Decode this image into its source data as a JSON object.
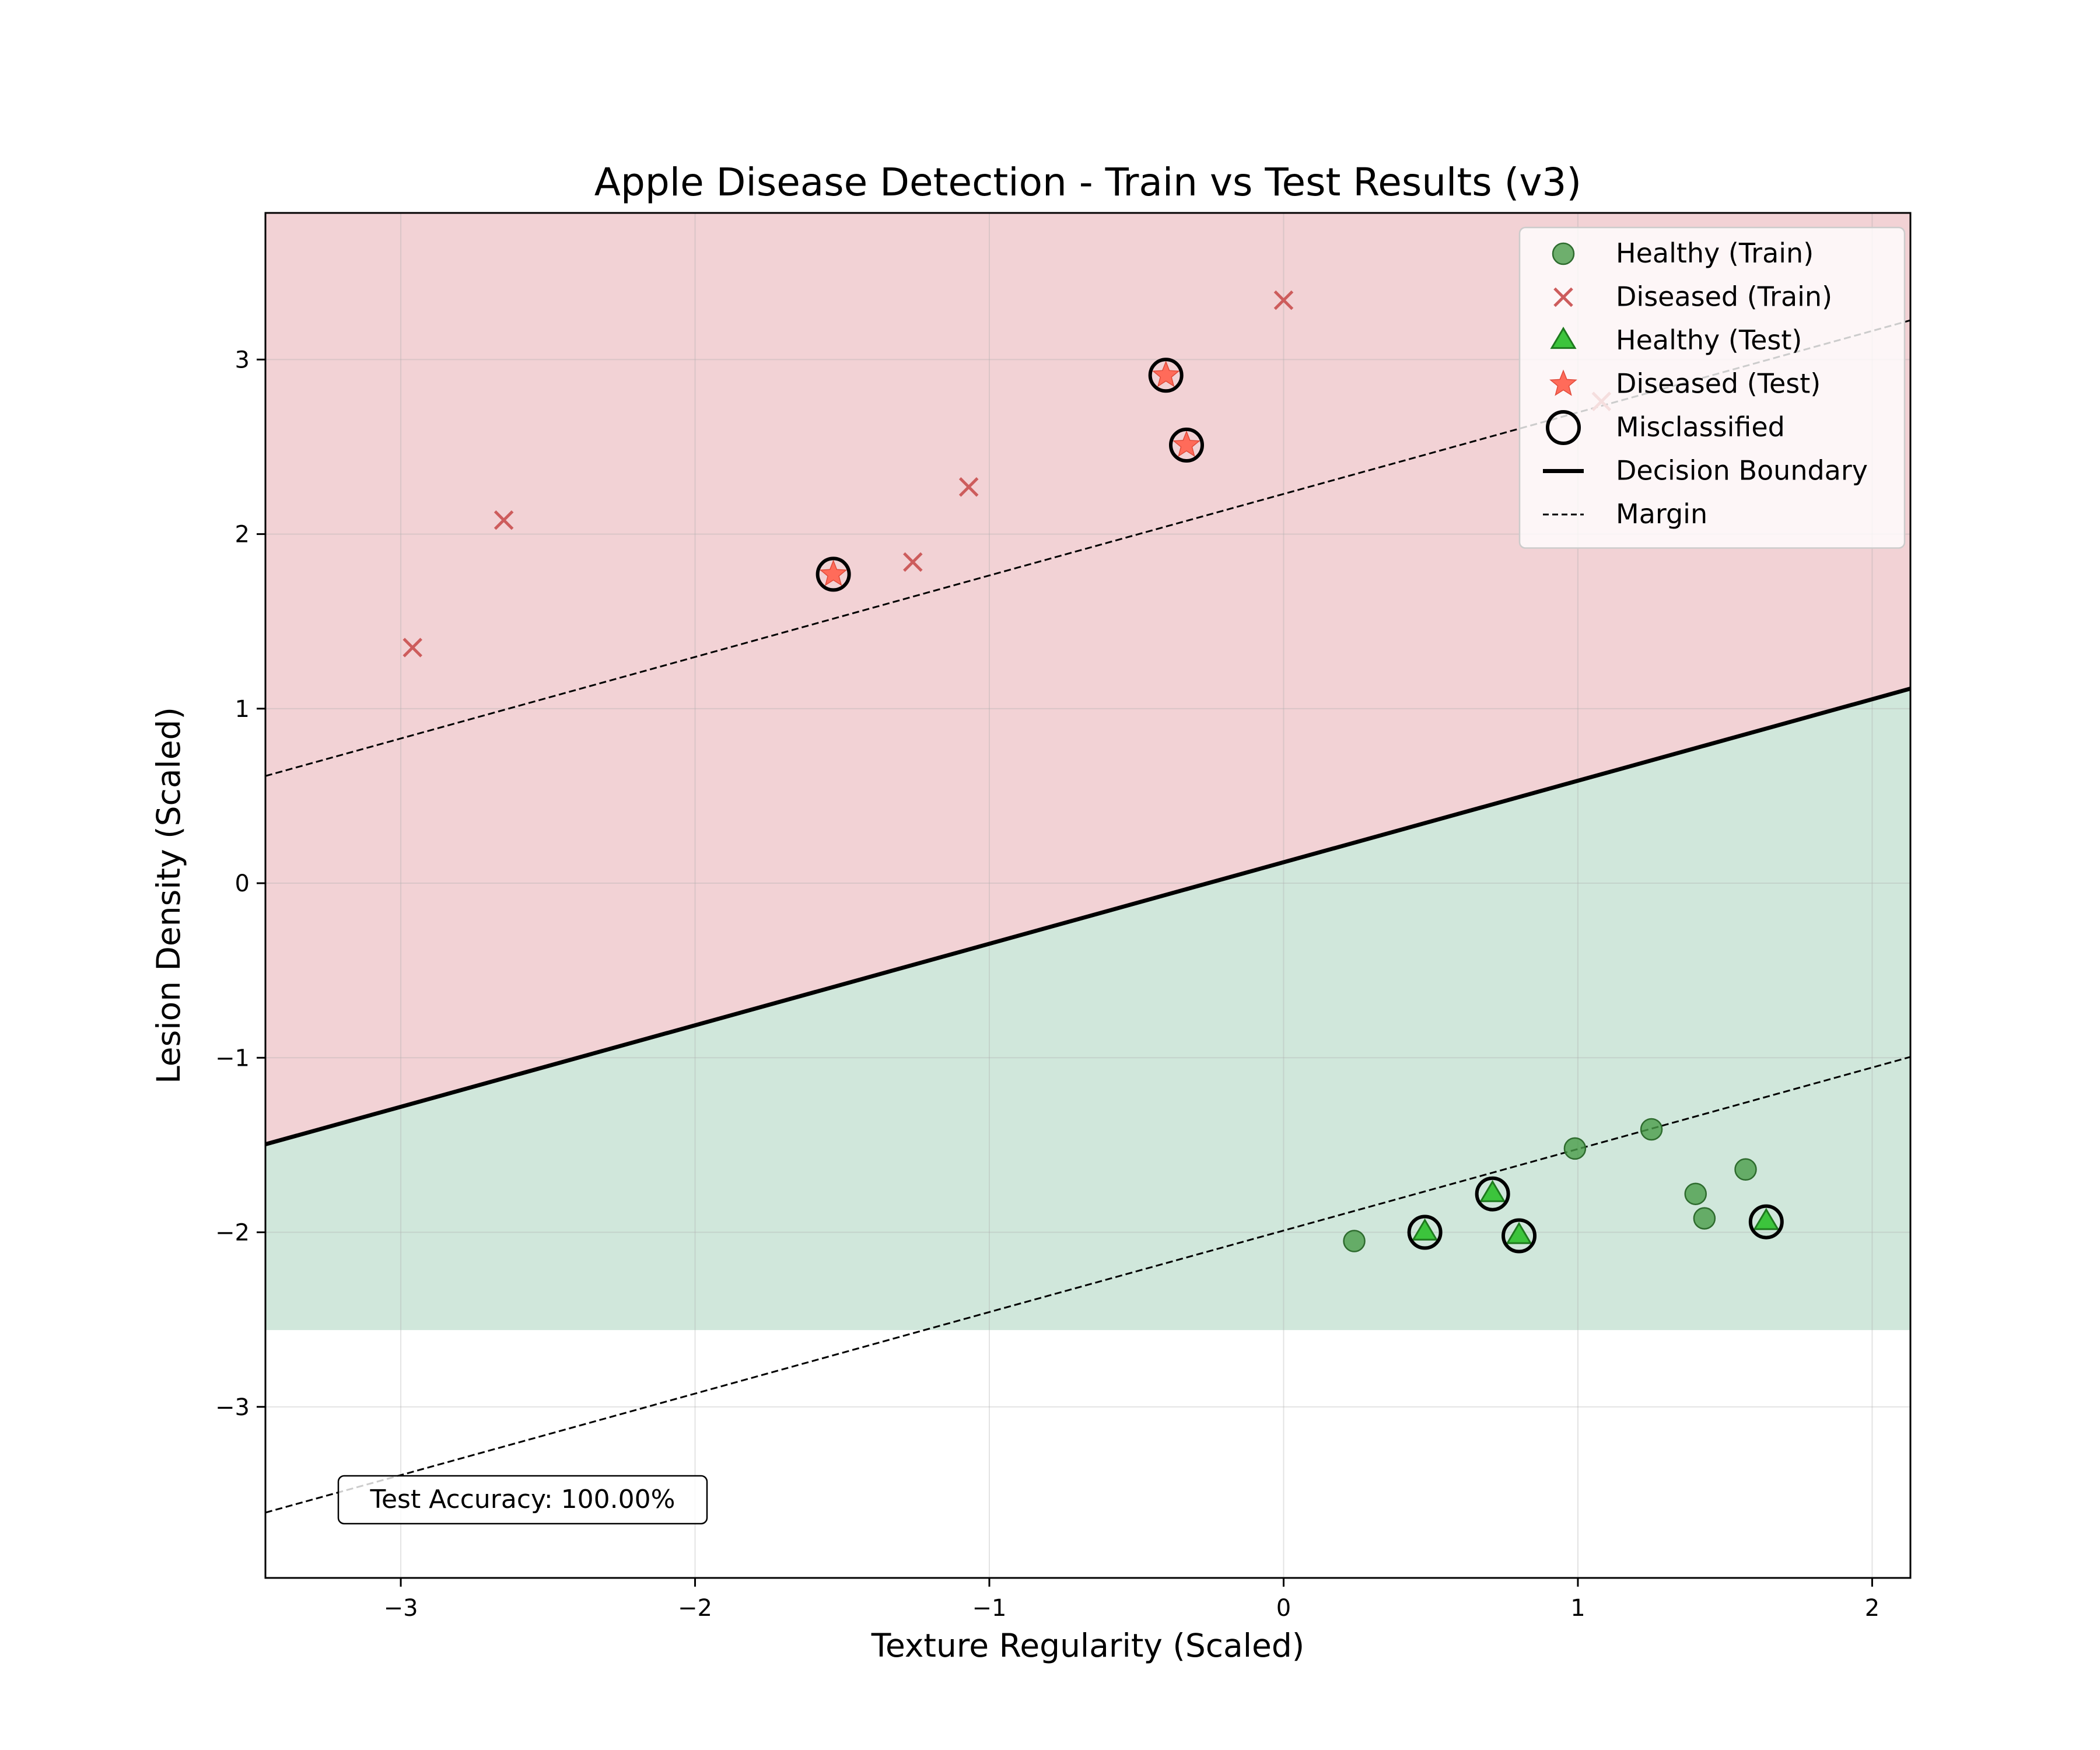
{
  "chart_data": {
    "type": "scatter",
    "title": "Apple Disease Detection - Train vs Test Results (v3)",
    "xlabel": "Texture Regularity (Scaled)",
    "ylabel": "Lesion Density (Scaled)",
    "xlim": [
      -3.46,
      2.13
    ],
    "ylim": [
      -3.98,
      3.84
    ],
    "xticks": [
      -3,
      -2,
      -1,
      0,
      1,
      2
    ],
    "yticks": [
      -3,
      -2,
      -1,
      0,
      1,
      2,
      3
    ],
    "grid": true,
    "legend_position": "top-right",
    "colors": {
      "diseased_region": "#f2d2d5",
      "healthy_region": "#d0e7db",
      "healthy_train": "#4a9d4a",
      "diseased_train": "#cd5c5c",
      "healthy_test": "#3cc43c",
      "diseased_test": "#ff6b5a",
      "boundary": "#000000"
    },
    "regions": {
      "healthy_region_ymin": -2.56
    },
    "decision_boundary": {
      "slope": 0.467,
      "intercept": 0.12
    },
    "margin_upper": {
      "slope": 0.467,
      "intercept": 2.23
    },
    "margin_lower": {
      "slope": 0.467,
      "intercept": -1.99
    },
    "series": [
      {
        "name": "Healthy (Train)",
        "marker": "circle",
        "points": [
          [
            0.24,
            -2.05
          ],
          [
            0.99,
            -1.52
          ],
          [
            1.25,
            -1.41
          ],
          [
            1.4,
            -1.78
          ],
          [
            1.43,
            -1.92
          ],
          [
            1.57,
            -1.64
          ]
        ]
      },
      {
        "name": "Diseased (Train)",
        "marker": "x",
        "points": [
          [
            -2.96,
            1.35
          ],
          [
            -2.65,
            2.08
          ],
          [
            -1.26,
            1.84
          ],
          [
            -1.07,
            2.27
          ],
          [
            0.0,
            3.34
          ],
          [
            1.08,
            2.76
          ]
        ]
      },
      {
        "name": "Healthy (Test)",
        "marker": "triangle",
        "points": [
          [
            0.48,
            -2.0
          ],
          [
            0.71,
            -1.78
          ],
          [
            0.8,
            -2.02
          ],
          [
            1.64,
            -1.94
          ]
        ]
      },
      {
        "name": "Diseased (Test)",
        "marker": "star",
        "points": [
          [
            -1.53,
            1.77
          ],
          [
            -0.4,
            2.91
          ],
          [
            -0.33,
            2.51
          ]
        ]
      },
      {
        "name": "Misclassified",
        "marker": "ring",
        "points": [
          [
            -1.53,
            1.77
          ],
          [
            -0.4,
            2.91
          ],
          [
            -0.33,
            2.51
          ],
          [
            0.48,
            -2.0
          ],
          [
            0.71,
            -1.78
          ],
          [
            0.8,
            -2.02
          ],
          [
            1.64,
            -1.94
          ]
        ]
      }
    ],
    "legend": [
      {
        "label": "Healthy (Train)",
        "marker": "circle"
      },
      {
        "label": "Diseased (Train)",
        "marker": "x"
      },
      {
        "label": "Healthy (Test)",
        "marker": "triangle"
      },
      {
        "label": "Diseased (Test)",
        "marker": "star"
      },
      {
        "label": "Misclassified",
        "marker": "ring"
      },
      {
        "label": "Decision Boundary",
        "marker": "line"
      },
      {
        "label": "Margin",
        "marker": "dashed"
      }
    ],
    "annotation": "Test Accuracy: 100.00%"
  }
}
